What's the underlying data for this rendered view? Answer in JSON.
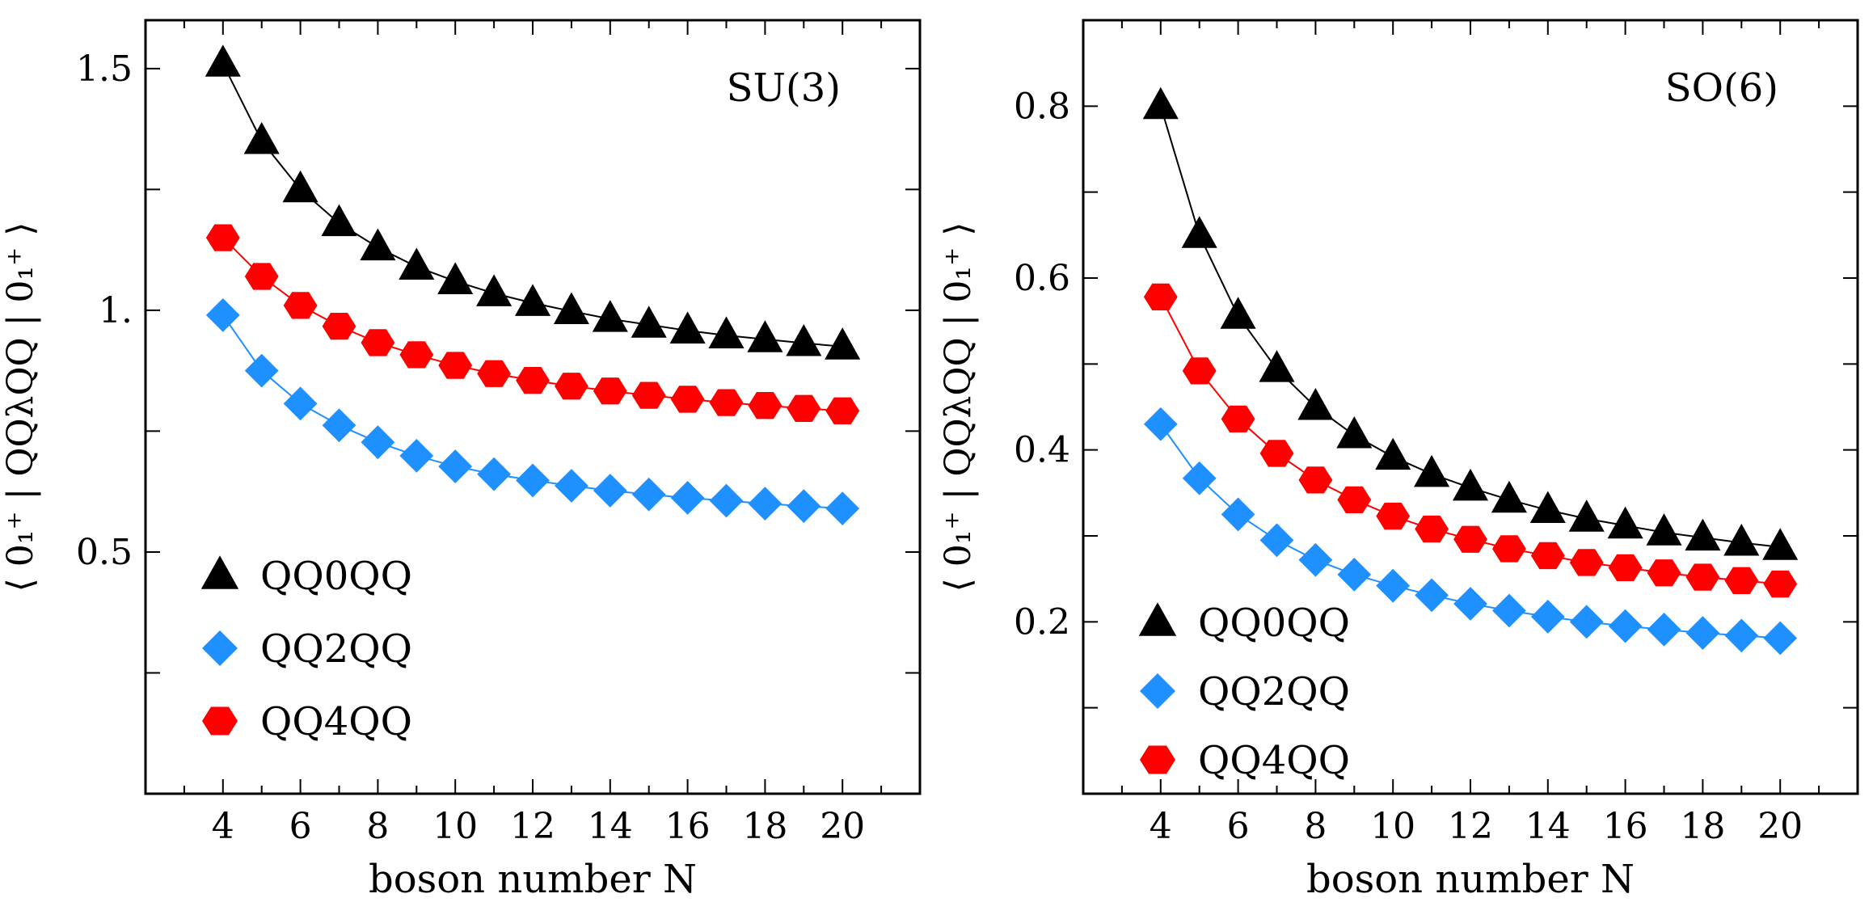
{
  "figure": {
    "legend_labels": [
      "QQ0QQ",
      "QQ2QQ",
      "QQ4QQ"
    ]
  },
  "chart_data": [
    {
      "type": "line",
      "panel_label": "SU(3)",
      "xlabel": "boson number N",
      "ylabel": "⟨ 0₁⁺ | QQλQQ | 0₁⁺ ⟩",
      "xlim": [
        2,
        22
      ],
      "ylim": [
        0,
        1.6
      ],
      "xticks": [
        4,
        6,
        8,
        10,
        12,
        14,
        16,
        18,
        20
      ],
      "xtick_labels": [
        "4",
        "6",
        "8",
        "10",
        "12",
        "14",
        "16",
        "18",
        "20"
      ],
      "yticks": [
        0.5,
        1.0,
        1.5
      ],
      "ytick_labels": [
        "0.5",
        "1.",
        "1.5"
      ],
      "legend_position": "bottom-left",
      "x": [
        4,
        5,
        6,
        7,
        8,
        9,
        10,
        11,
        12,
        13,
        14,
        15,
        16,
        17,
        18,
        19,
        20
      ],
      "series": [
        {
          "name": "QQ0QQ",
          "marker": "triangle",
          "color": "#000000",
          "values": [
            1.51,
            1.35,
            1.25,
            1.18,
            1.13,
            1.09,
            1.06,
            1.035,
            1.015,
            0.998,
            0.982,
            0.97,
            0.958,
            0.948,
            0.94,
            0.932,
            0.925
          ]
        },
        {
          "name": "QQ2QQ",
          "marker": "diamond",
          "color": "#1e90ff",
          "values": [
            0.99,
            0.875,
            0.807,
            0.762,
            0.727,
            0.699,
            0.677,
            0.661,
            0.648,
            0.637,
            0.627,
            0.619,
            0.612,
            0.606,
            0.6,
            0.595,
            0.59
          ]
        },
        {
          "name": "QQ4QQ",
          "marker": "hexagon",
          "color": "#ff0000",
          "values": [
            1.15,
            1.07,
            1.01,
            0.967,
            0.933,
            0.908,
            0.886,
            0.869,
            0.855,
            0.843,
            0.833,
            0.824,
            0.816,
            0.809,
            0.803,
            0.797,
            0.792
          ]
        }
      ]
    },
    {
      "type": "line",
      "panel_label": "SO(6)",
      "xlabel": "boson number N",
      "ylabel": "⟨ 0₁⁺ | QQλQQ | 0₁⁺ ⟩",
      "xlim": [
        2,
        22
      ],
      "ylim": [
        0,
        0.9
      ],
      "xticks": [
        4,
        6,
        8,
        10,
        12,
        14,
        16,
        18,
        20
      ],
      "xtick_labels": [
        "4",
        "6",
        "8",
        "10",
        "12",
        "14",
        "16",
        "18",
        "20"
      ],
      "yticks": [
        0.2,
        0.4,
        0.6,
        0.8
      ],
      "ytick_labels": [
        "0.2",
        "0.4",
        "0.6",
        "0.8"
      ],
      "legend_position": "bottom-left",
      "x": [
        4,
        5,
        6,
        7,
        8,
        9,
        10,
        11,
        12,
        13,
        14,
        15,
        16,
        17,
        18,
        19,
        20
      ],
      "series": [
        {
          "name": "QQ0QQ",
          "marker": "triangle",
          "color": "#000000",
          "values": [
            0.8,
            0.65,
            0.556,
            0.494,
            0.45,
            0.417,
            0.392,
            0.372,
            0.356,
            0.342,
            0.33,
            0.32,
            0.312,
            0.304,
            0.298,
            0.292,
            0.287
          ]
        },
        {
          "name": "QQ2QQ",
          "marker": "diamond",
          "color": "#1e90ff",
          "values": [
            0.43,
            0.367,
            0.325,
            0.295,
            0.272,
            0.255,
            0.242,
            0.231,
            0.221,
            0.213,
            0.206,
            0.2,
            0.195,
            0.191,
            0.187,
            0.184,
            0.181
          ]
        },
        {
          "name": "QQ4QQ",
          "marker": "hexagon",
          "color": "#ff0000",
          "values": [
            0.578,
            0.492,
            0.436,
            0.396,
            0.365,
            0.342,
            0.323,
            0.308,
            0.296,
            0.285,
            0.277,
            0.269,
            0.263,
            0.257,
            0.252,
            0.248,
            0.244
          ]
        }
      ]
    }
  ]
}
